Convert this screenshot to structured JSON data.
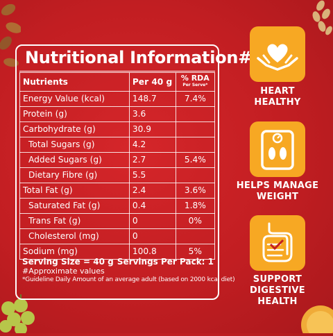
{
  "panel": {
    "title": "Nutritional Information#",
    "headers": {
      "nutrients": "Nutrients",
      "per40g": "Per 40 g",
      "rda": "% RDA",
      "rda_sub": "Per Serve*"
    },
    "rows": [
      {
        "name": "Energy Value (kcal)",
        "value": "148.7",
        "rda": "7.4%"
      },
      {
        "name": "Protein (g)",
        "value": "3.6",
        "rda": ""
      },
      {
        "name": "Carbohydrate (g)",
        "value": "30.9",
        "rda": ""
      },
      {
        "name": "Total Sugars (g)",
        "value": "4.2",
        "rda": ""
      },
      {
        "name": "Added Sugars (g)",
        "value": "2.7",
        "rda": "5.4%"
      },
      {
        "name": "Dietary Fibre (g)",
        "value": "5.5",
        "rda": ""
      },
      {
        "name": "Total Fat (g)",
        "value": "2.4",
        "rda": "3.6%"
      },
      {
        "name": "Saturated Fat (g)",
        "value": "0.4",
        "rda": "1.8%"
      },
      {
        "name": "Trans Fat (g)",
        "value": "0",
        "rda": "0%"
      },
      {
        "name": "Cholesterol (mg)",
        "value": "0",
        "rda": ""
      },
      {
        "name": "Sodium (mg)",
        "value": "100.8",
        "rda": "5%"
      }
    ],
    "serving_size": "Serving Size = 40 g",
    "servings_per_pack": "Servings Per Pack: 1",
    "note_approx": "#Approximate values",
    "note_rda": "*Guideline Daily Amount of an average adult (based on 2000 kcal diet)"
  },
  "benefits": [
    {
      "icon": "heart-hands-icon",
      "line1": "HEART",
      "line2": "HEALTHY"
    },
    {
      "icon": "weighing-scale-icon",
      "line1": "HELPS MANAGE",
      "line2": "WEIGHT"
    },
    {
      "icon": "digestive-system-icon",
      "line1": "SUPPORT",
      "line2": "DIGESTIVE HEALTH"
    }
  ],
  "colors": {
    "background": "#c21e22",
    "badge": "#f7a823",
    "text": "#ffffff"
  }
}
